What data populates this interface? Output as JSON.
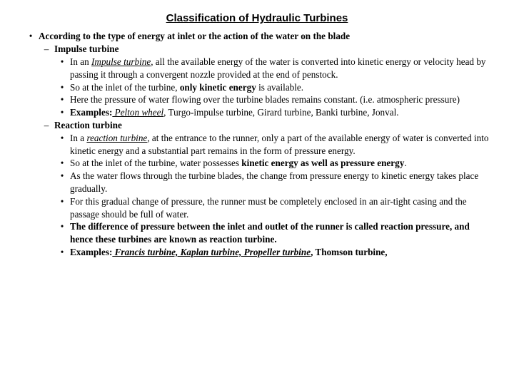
{
  "title": "Classification of Hydraulic Turbines",
  "l0_text": "According to the type of energy at inlet or the action of the water on the blade",
  "impulse": {
    "header": "Impulse turbine",
    "p1a": "In an ",
    "p1b": "Impulse turbine",
    "p1c": ", all the available energy of the water is converted into kinetic energy or velocity head by passing it through a convergent nozzle provided at the end of penstock.",
    "p2a": "So at the inlet of the turbine, ",
    "p2b": "only kinetic energy",
    "p2c": " is available.",
    "p3": "Here the pressure of water flowing over the turbine blades remains constant. (i.e. atmospheric pressure)",
    "p4a": "Examples:",
    "p4b": " Pelton wheel",
    "p4c": ", Turgo-impulse turbine, Girard  turbine,  Banki turbine, Jonval."
  },
  "reaction": {
    "header": "Reaction turbine",
    "p1a": "In a ",
    "p1b": "reaction turbine",
    "p1c": ", at the entrance to the runner, only a part of the available energy of water is converted into kinetic energy and a substantial part remains in the form of pressure energy.",
    "p2a": "So at the inlet of the turbine, water possesses ",
    "p2b": "kinetic energy as well as pressure energy",
    "p2c": ".",
    "p3": "As the water flows through the turbine blades, the change from pressure energy to kinetic energy takes place gradually.",
    "p4": "For this gradual change of pressure, the runner must be completely enclosed in an air-tight casing and the passage should be full of water.",
    "p5": "The difference of pressure between the inlet and outlet of the runner is called reaction pressure, and hence these turbines are known as reaction turbine.",
    "p6a": "Examples:",
    "p6b": " Francis turbine, Kaplan turbine, Propeller turbine",
    "p6c": ", Thomson turbine,"
  }
}
